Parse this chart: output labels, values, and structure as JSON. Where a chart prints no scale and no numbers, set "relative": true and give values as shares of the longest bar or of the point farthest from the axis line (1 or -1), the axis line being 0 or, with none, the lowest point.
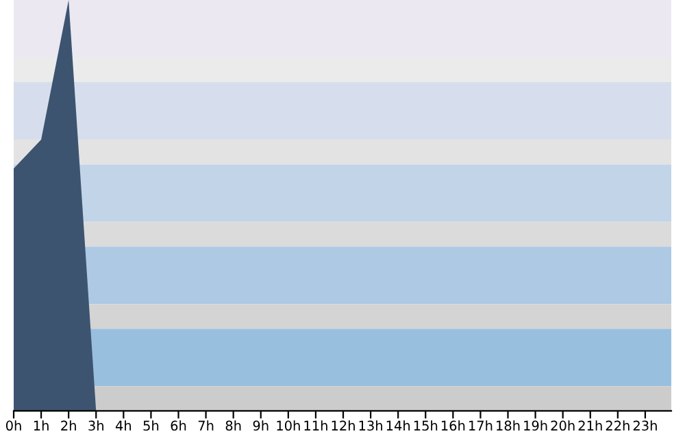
{
  "chart_data": {
    "type": "area",
    "relative": true,
    "categories": [
      "0h",
      "1h",
      "2h",
      "3h",
      "4h",
      "5h",
      "6h",
      "7h",
      "8h",
      "9h",
      "10h",
      "11h",
      "12h",
      "13h",
      "14h",
      "15h",
      "16h",
      "17h",
      "18h",
      "19h",
      "20h",
      "21h",
      "22h",
      "23h"
    ],
    "series": [
      {
        "color": "#3d5470",
        "values": [
          0.59,
          0.66,
          1,
          0,
          0,
          0,
          0,
          0,
          0,
          0,
          0,
          0,
          0,
          0,
          0,
          0,
          0,
          0,
          0,
          0,
          0,
          0,
          0,
          0
        ]
      }
    ]
  }
}
